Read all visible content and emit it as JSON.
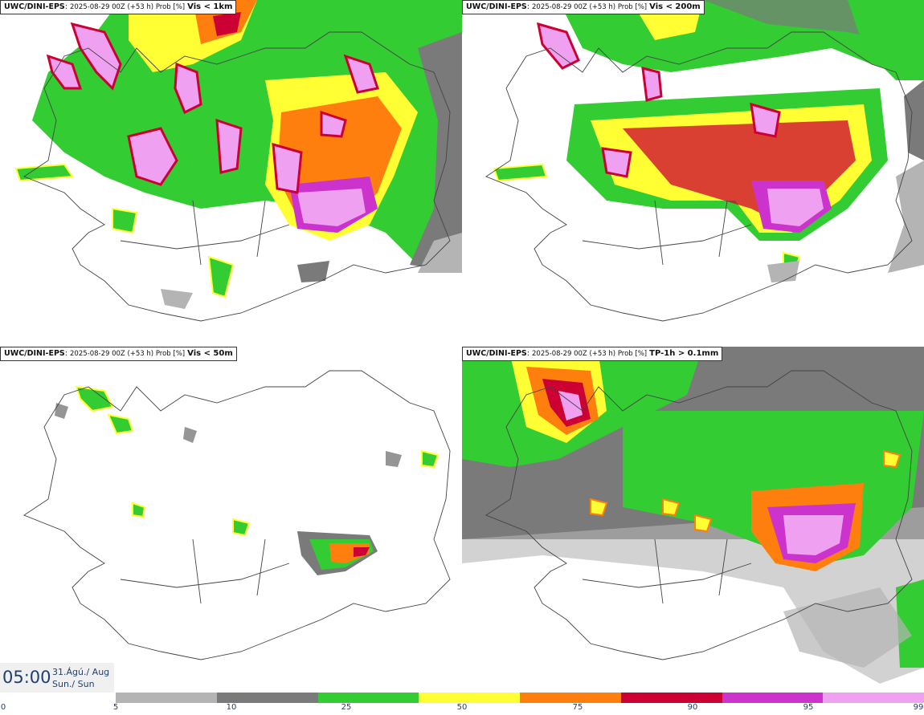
{
  "panels": [
    {
      "model": "UWC/DINI-EPS",
      "run": "2025-08-29 00Z (+53 h) Prob [%]",
      "variable": "Vis < 1km"
    },
    {
      "model": "UWC/DINI-EPS",
      "run": "2025-08-29 00Z (+53 h) Prob [%]",
      "variable": "Vis < 200m"
    },
    {
      "model": "UWC/DINI-EPS",
      "run": "2025-08-29 00Z (+53 h) Prob [%]",
      "variable": "Vis < 50m"
    },
    {
      "model": "UWC/DINI-EPS",
      "run": "2025-08-29 00Z (+53 h) Prob [%]",
      "variable": "TP-1h > 0.1mm"
    }
  ],
  "valid": {
    "time": "05:00",
    "date_line1": "31.Ágú./ Aug",
    "date_line2": "Sun./ Sun"
  },
  "colorbar": {
    "ticks": [
      "0",
      "5",
      "10",
      "25",
      "50",
      "75",
      "90",
      "95",
      "99"
    ],
    "colors": [
      "#b4b4b4",
      "#7a7a7a",
      "#33cc33",
      "#ffff33",
      "#ff7f0e",
      "#cc0033",
      "#cc33cc",
      "#f0a0f0"
    ]
  }
}
